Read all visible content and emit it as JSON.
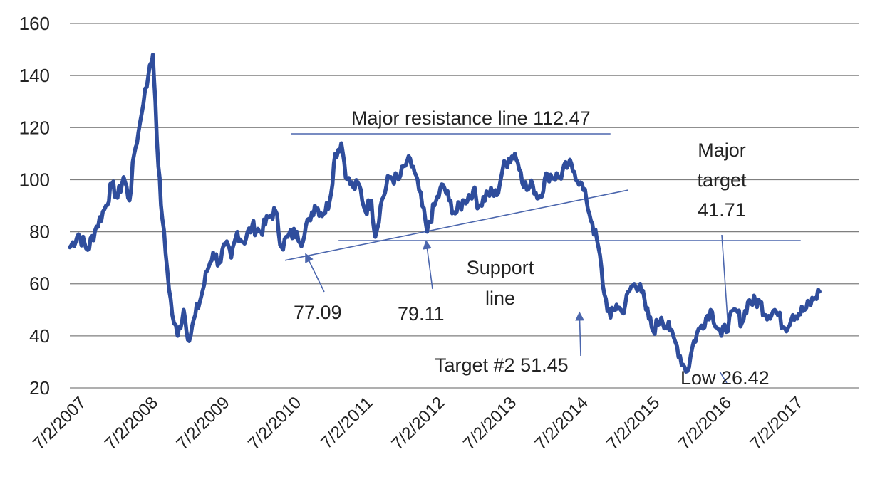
{
  "chart_data": {
    "type": "line",
    "title": "",
    "xlabel": "",
    "ylabel": "",
    "ylim": [
      20,
      160
    ],
    "yticks": [
      20,
      40,
      60,
      80,
      100,
      120,
      140,
      160
    ],
    "xlim": [
      "7/2/2007",
      "7/2/2018"
    ],
    "x_tick_labels": [
      "7/2/2007",
      "7/2/2008",
      "7/2/2009",
      "7/2/2010",
      "7/2/2011",
      "7/2/2012",
      "7/2/2013",
      "7/2/2014",
      "7/2/2015",
      "7/2/2016",
      "7/2/2017"
    ],
    "grid": true,
    "series": [
      {
        "color": "#2f4d9c",
        "points": [
          [
            "7/2/2007",
            74
          ],
          [
            "8/15/2007",
            79
          ],
          [
            "10/1/2007",
            73
          ],
          [
            "11/15/2007",
            82
          ],
          [
            "1/2/2008",
            90
          ],
          [
            "2/1/2008",
            98
          ],
          [
            "3/1/2008",
            93
          ],
          [
            "4/1/2008",
            101
          ],
          [
            "5/1/2008",
            92
          ],
          [
            "5/25/2008",
            110
          ],
          [
            "6/15/2008",
            118
          ],
          [
            "7/1/2008",
            125
          ],
          [
            "7/20/2008",
            135
          ],
          [
            "8/5/2008",
            140
          ],
          [
            "8/20/2008",
            145
          ],
          [
            "8/28/2008",
            148
          ],
          [
            "9/10/2008",
            130
          ],
          [
            "9/25/2008",
            105
          ],
          [
            "10/15/2008",
            85
          ],
          [
            "11/10/2008",
            65
          ],
          [
            "12/5/2008",
            48
          ],
          [
            "1/1/2009",
            40
          ],
          [
            "2/1/2009",
            50
          ],
          [
            "3/1/2009",
            38
          ],
          [
            "4/1/2009",
            48
          ],
          [
            "5/1/2009",
            55
          ],
          [
            "6/1/2009",
            65
          ],
          [
            "7/1/2009",
            72
          ],
          [
            "8/1/2009",
            68
          ],
          [
            "9/1/2009",
            75
          ],
          [
            "10/1/2009",
            70
          ],
          [
            "11/1/2009",
            80
          ],
          [
            "12/1/2009",
            76
          ],
          [
            "1/15/2010",
            82
          ],
          [
            "3/1/2010",
            80
          ],
          [
            "4/15/2010",
            86
          ],
          [
            "5/15/2010",
            88
          ],
          [
            "6/15/2010",
            74
          ],
          [
            "7/15/2010",
            78
          ],
          [
            "9/1/2010",
            80
          ],
          [
            "10/1/2010",
            76
          ],
          [
            "11/1/2010",
            85
          ],
          [
            "12/1/2010",
            90
          ],
          [
            "1/15/2011",
            87
          ],
          [
            "2/15/2011",
            92
          ],
          [
            "3/15/2011",
            110
          ],
          [
            "4/15/2011",
            114
          ],
          [
            "5/15/2011",
            100
          ],
          [
            "6/15/2011",
            97
          ],
          [
            "7/15/2011",
            98
          ],
          [
            "8/15/2011",
            88
          ],
          [
            "9/15/2011",
            92
          ],
          [
            "10/5/2011",
            78
          ],
          [
            "11/1/2011",
            90
          ],
          [
            "12/15/2011",
            101
          ],
          [
            "2/1/2012",
            100
          ],
          [
            "3/15/2012",
            107
          ],
          [
            "4/15/2012",
            105
          ],
          [
            "5/15/2012",
            96
          ],
          [
            "6/25/2012",
            80
          ],
          [
            "8/1/2012",
            90
          ],
          [
            "9/15/2012",
            98
          ],
          [
            "10/15/2012",
            92
          ],
          [
            "11/15/2012",
            87
          ],
          [
            "1/1/2013",
            92
          ],
          [
            "2/15/2013",
            96
          ],
          [
            "3/15/2013",
            90
          ],
          [
            "5/1/2013",
            95
          ],
          [
            "6/15/2013",
            94
          ],
          [
            "7/15/2013",
            104
          ],
          [
            "8/15/2013",
            108
          ],
          [
            "9/15/2013",
            110
          ],
          [
            "10/15/2013",
            103
          ],
          [
            "11/15/2013",
            96
          ],
          [
            "12/15/2013",
            98
          ],
          [
            "1/15/2014",
            93
          ],
          [
            "3/1/2014",
            102
          ],
          [
            "5/1/2014",
            101
          ],
          [
            "6/15/2014",
            106
          ],
          [
            "7/15/2014",
            103
          ],
          [
            "8/15/2014",
            99
          ],
          [
            "9/15/2014",
            92
          ],
          [
            "10/15/2014",
            83
          ],
          [
            "11/15/2014",
            74
          ],
          [
            "12/15/2014",
            56
          ],
          [
            "1/15/2015",
            47
          ],
          [
            "2/15/2015",
            52
          ],
          [
            "3/15/2015",
            49
          ],
          [
            "5/1/2015",
            59
          ],
          [
            "6/15/2015",
            60
          ],
          [
            "7/15/2015",
            50
          ],
          [
            "8/20/2015",
            42
          ],
          [
            "10/1/2015",
            47
          ],
          [
            "11/15/2015",
            42
          ],
          [
            "12/20/2015",
            36
          ],
          [
            "1/20/2016",
            29
          ],
          [
            "2/11/2016",
            26.42
          ],
          [
            "3/15/2016",
            38
          ],
          [
            "4/15/2016",
            43
          ],
          [
            "6/8/2016",
            50
          ],
          [
            "8/2/2016",
            40
          ],
          [
            "10/15/2016",
            50
          ],
          [
            "11/15/2016",
            45
          ],
          [
            "12/15/2016",
            53
          ],
          [
            "2/15/2017",
            53
          ],
          [
            "3/15/2017",
            48
          ],
          [
            "5/1/2017",
            50
          ],
          [
            "6/21/2017",
            43
          ],
          [
            "8/1/2017",
            48
          ],
          [
            "10/1/2017",
            50
          ],
          [
            "11/15/2017",
            54
          ],
          [
            "12/15/2017",
            57
          ]
        ]
      }
    ],
    "annotations": {
      "resistance": {
        "text": "Major resistance line 112.47",
        "value": 112.47,
        "x_from": "8/1/2010",
        "x_to": "1/15/2015"
      },
      "support_text_line1": "Support",
      "support_text_line2": "line",
      "support_level": {
        "value": 77.09,
        "x_from": "4/1/2011",
        "x_to": "9/10/2017"
      },
      "trend_line": {
        "from": [
          "7/2/2010",
          69
        ],
        "to": [
          "4/15/2015",
          96
        ]
      },
      "low1": {
        "text": "77.09",
        "target": [
          "10/15/2010",
          71.5
        ]
      },
      "low2": {
        "text": "79.11",
        "target": [
          "6/20/2012",
          76.5
        ]
      },
      "major_target_line1": "Major",
      "major_target_line2": "target",
      "major_target_line3": "41.71",
      "target2": {
        "text": "Target #2 51.45",
        "target": [
          "8/10/2014",
          49
        ]
      },
      "low_label": "Low 26.42"
    }
  }
}
